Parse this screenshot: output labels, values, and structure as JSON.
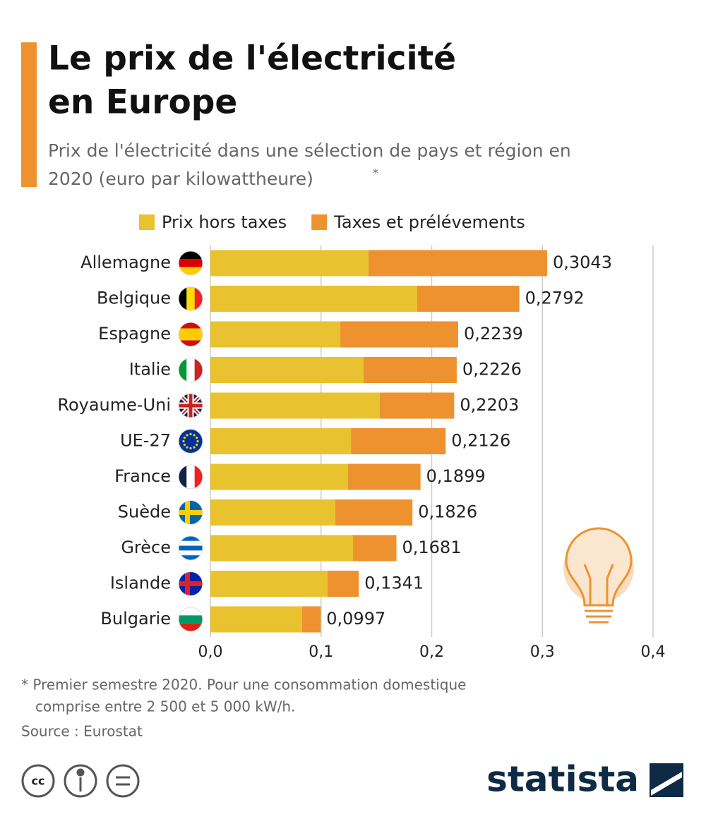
{
  "chart_data": {
    "type": "stacked-bar-horizontal",
    "title": [
      "Le prix de l'électricité",
      "en Europe"
    ],
    "subtitle": [
      "Prix de l'électricité dans une sélection de pays et région en",
      "2020 (euro par kilowattheure)"
    ],
    "subtitle_mark": "*",
    "categories": [
      "Allemagne",
      "Belgique",
      "Espagne",
      "Italie",
      "Royaume-Uni",
      "UE-27",
      "France",
      "Suède",
      "Grèce",
      "Islande",
      "Bulgarie"
    ],
    "series": [
      {
        "name": "Prix hors taxes",
        "color": "#e9c22f",
        "values": [
          0.1429,
          0.1869,
          0.1174,
          0.1384,
          0.1531,
          0.127,
          0.1244,
          0.1129,
          0.1289,
          0.1059,
          0.0829
        ]
      },
      {
        "name": "Taxes et prélévements",
        "color": "#ee922f",
        "values": [
          0.1614,
          0.0923,
          0.1065,
          0.0842,
          0.0672,
          0.0856,
          0.0655,
          0.0697,
          0.0392,
          0.0282,
          0.0168
        ]
      }
    ],
    "total": {
      "values": [
        0.3043,
        0.2792,
        0.2239,
        0.2226,
        0.2203,
        0.2126,
        0.1899,
        0.1826,
        0.1681,
        0.1341,
        0.0997
      ],
      "value_labels": [
        "0,3043",
        "0,2792",
        "0,2239",
        "0,2226",
        "0,2203",
        "0,2126",
        "0,1899",
        "0,1826",
        "0,1681",
        "0,1341",
        "0,0997"
      ]
    },
    "xlim": [
      0,
      0.4
    ],
    "xticks": [
      {
        "value": 0,
        "label": "0,0"
      },
      {
        "value": 0.1,
        "label": "0,1"
      },
      {
        "value": 0.2,
        "label": "0,2"
      },
      {
        "value": 0.3,
        "label": "0,3"
      },
      {
        "value": 0.4,
        "label": "0,4"
      }
    ],
    "grid": true,
    "notes": [
      "* Premier semestre 2020. Pour une consommation domestique",
      "comprise entre 2 500 et 5 000 kW/h."
    ],
    "source": "Source : Eurostat",
    "brand": "statista"
  }
}
